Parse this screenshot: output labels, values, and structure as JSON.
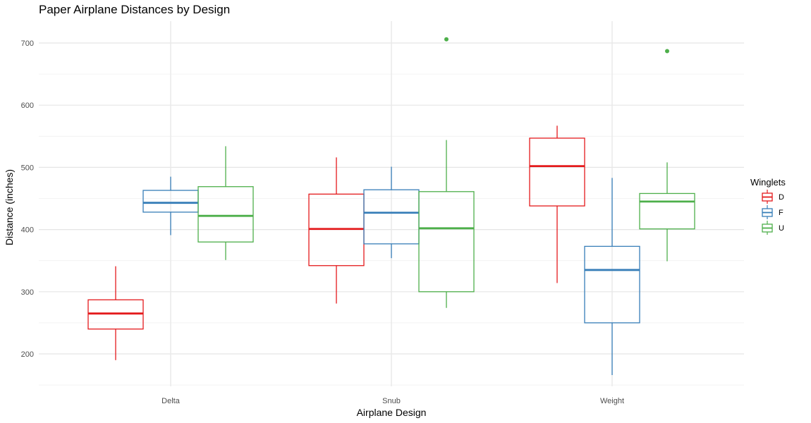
{
  "chart_data": {
    "type": "boxplot",
    "title": "Paper Airplane Distances by Design",
    "xlabel": "Airplane Design",
    "ylabel": "Distance (inches)",
    "categories": [
      "Delta",
      "Snub",
      "Weight"
    ],
    "ylim": [
      145,
      730
    ],
    "yticks": [
      200,
      300,
      400,
      500,
      600,
      700
    ],
    "grid": true,
    "legend": {
      "title": "Winglets",
      "placement": "right",
      "entries": [
        "D",
        "F",
        "U"
      ]
    },
    "series": [
      {
        "name": "D",
        "color": "#e41a1c",
        "boxes": [
          {
            "category": "Delta",
            "whisker_low": 190,
            "q1": 240,
            "median": 265,
            "q3": 287,
            "whisker_high": 341,
            "outliers": []
          },
          {
            "category": "Snub",
            "whisker_low": 281,
            "q1": 342,
            "median": 401,
            "q3": 457,
            "whisker_high": 516,
            "outliers": []
          },
          {
            "category": "Weight",
            "whisker_low": 314,
            "q1": 438,
            "median": 502,
            "q3": 547,
            "whisker_high": 567,
            "outliers": []
          }
        ]
      },
      {
        "name": "F",
        "color": "#377eb8",
        "boxes": [
          {
            "category": "Delta",
            "whisker_low": 391,
            "q1": 428,
            "median": 443,
            "q3": 463,
            "whisker_high": 485,
            "outliers": []
          },
          {
            "category": "Snub",
            "whisker_low": 354,
            "q1": 377,
            "median": 427,
            "q3": 464,
            "whisker_high": 501,
            "outliers": []
          },
          {
            "category": "Weight",
            "whisker_low": 166,
            "q1": 250,
            "median": 335,
            "q3": 373,
            "whisker_high": 483,
            "outliers": []
          }
        ]
      },
      {
        "name": "U",
        "color": "#4daf4a",
        "boxes": [
          {
            "category": "Delta",
            "whisker_low": 351,
            "q1": 380,
            "median": 422,
            "q3": 469,
            "whisker_high": 534,
            "outliers": []
          },
          {
            "category": "Snub",
            "whisker_low": 274,
            "q1": 300,
            "median": 402,
            "q3": 461,
            "whisker_high": 544,
            "outliers": [
              706
            ]
          },
          {
            "category": "Weight",
            "whisker_low": 349,
            "q1": 401,
            "median": 445,
            "q3": 458,
            "whisker_high": 508,
            "outliers": [
              687
            ]
          }
        ]
      }
    ]
  }
}
